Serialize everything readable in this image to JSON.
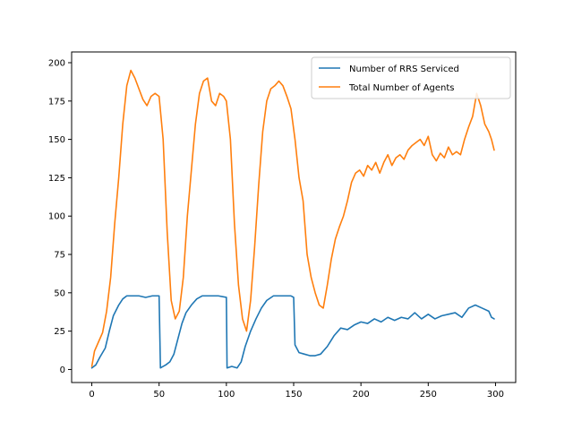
{
  "chart_data": {
    "type": "line",
    "title": "",
    "xlabel": "",
    "ylabel": "",
    "xlim": [
      -15,
      315
    ],
    "ylim": [
      -8.5,
      207
    ],
    "xticks": [
      0,
      50,
      100,
      150,
      200,
      250,
      300
    ],
    "yticks": [
      0,
      25,
      50,
      75,
      100,
      125,
      150,
      175,
      200
    ],
    "grid": false,
    "legend_position": "top-right",
    "series": [
      {
        "name": "Number of RRS Serviced",
        "color": "#1f77b4",
        "points": [
          [
            0,
            1
          ],
          [
            3,
            3
          ],
          [
            6,
            8
          ],
          [
            10,
            14
          ],
          [
            13,
            25
          ],
          [
            16,
            35
          ],
          [
            20,
            42
          ],
          [
            23,
            46
          ],
          [
            26,
            48
          ],
          [
            30,
            48
          ],
          [
            35,
            48
          ],
          [
            40,
            47
          ],
          [
            45,
            48
          ],
          [
            50,
            48
          ],
          [
            51,
            1
          ],
          [
            55,
            3
          ],
          [
            58,
            5
          ],
          [
            61,
            10
          ],
          [
            64,
            20
          ],
          [
            67,
            30
          ],
          [
            70,
            37
          ],
          [
            74,
            42
          ],
          [
            78,
            46
          ],
          [
            82,
            48
          ],
          [
            88,
            48
          ],
          [
            94,
            48
          ],
          [
            100,
            47
          ],
          [
            100.5,
            1
          ],
          [
            104,
            2
          ],
          [
            108,
            1
          ],
          [
            111,
            5
          ],
          [
            114,
            15
          ],
          [
            118,
            25
          ],
          [
            122,
            33
          ],
          [
            126,
            40
          ],
          [
            130,
            45
          ],
          [
            135,
            48
          ],
          [
            142,
            48
          ],
          [
            148,
            48
          ],
          [
            150,
            47
          ],
          [
            151,
            16
          ],
          [
            154,
            11
          ],
          [
            158,
            10
          ],
          [
            162,
            9
          ],
          [
            166,
            9
          ],
          [
            170,
            10
          ],
          [
            175,
            15
          ],
          [
            180,
            22
          ],
          [
            185,
            27
          ],
          [
            190,
            26
          ],
          [
            195,
            29
          ],
          [
            200,
            31
          ],
          [
            205,
            30
          ],
          [
            210,
            33
          ],
          [
            215,
            31
          ],
          [
            220,
            34
          ],
          [
            225,
            32
          ],
          [
            230,
            34
          ],
          [
            235,
            33
          ],
          [
            240,
            37
          ],
          [
            245,
            33
          ],
          [
            250,
            36
          ],
          [
            255,
            33
          ],
          [
            260,
            35
          ],
          [
            265,
            36
          ],
          [
            270,
            37
          ],
          [
            275,
            34
          ],
          [
            280,
            40
          ],
          [
            285,
            42
          ],
          [
            290,
            40
          ],
          [
            295,
            38
          ],
          [
            297,
            34
          ],
          [
            299,
            33
          ]
        ]
      },
      {
        "name": "Total Number of Agents",
        "color": "#ff7f0e",
        "points": [
          [
            0,
            2
          ],
          [
            2,
            12
          ],
          [
            5,
            18
          ],
          [
            8,
            24
          ],
          [
            11,
            38
          ],
          [
            14,
            60
          ],
          [
            17,
            95
          ],
          [
            20,
            125
          ],
          [
            23,
            160
          ],
          [
            26,
            185
          ],
          [
            29,
            195
          ],
          [
            32,
            190
          ],
          [
            35,
            183
          ],
          [
            38,
            176
          ],
          [
            41,
            172
          ],
          [
            44,
            178
          ],
          [
            47,
            180
          ],
          [
            50,
            178
          ],
          [
            53,
            150
          ],
          [
            56,
            90
          ],
          [
            59,
            45
          ],
          [
            62,
            33
          ],
          [
            65,
            38
          ],
          [
            68,
            60
          ],
          [
            71,
            100
          ],
          [
            74,
            130
          ],
          [
            77,
            160
          ],
          [
            80,
            180
          ],
          [
            83,
            188
          ],
          [
            86,
            190
          ],
          [
            89,
            175
          ],
          [
            92,
            172
          ],
          [
            95,
            180
          ],
          [
            98,
            178
          ],
          [
            100,
            175
          ],
          [
            103,
            150
          ],
          [
            106,
            95
          ],
          [
            109,
            55
          ],
          [
            112,
            33
          ],
          [
            115,
            25
          ],
          [
            118,
            45
          ],
          [
            121,
            80
          ],
          [
            124,
            120
          ],
          [
            127,
            155
          ],
          [
            130,
            175
          ],
          [
            133,
            183
          ],
          [
            136,
            185
          ],
          [
            139,
            188
          ],
          [
            142,
            185
          ],
          [
            145,
            178
          ],
          [
            148,
            170
          ],
          [
            151,
            150
          ],
          [
            154,
            125
          ],
          [
            157,
            110
          ],
          [
            160,
            75
          ],
          [
            163,
            60
          ],
          [
            166,
            50
          ],
          [
            169,
            42
          ],
          [
            172,
            40
          ],
          [
            175,
            55
          ],
          [
            178,
            72
          ],
          [
            181,
            85
          ],
          [
            184,
            93
          ],
          [
            187,
            100
          ],
          [
            190,
            110
          ],
          [
            193,
            122
          ],
          [
            196,
            128
          ],
          [
            199,
            130
          ],
          [
            202,
            126
          ],
          [
            205,
            133
          ],
          [
            208,
            130
          ],
          [
            211,
            135
          ],
          [
            214,
            128
          ],
          [
            217,
            135
          ],
          [
            220,
            140
          ],
          [
            223,
            133
          ],
          [
            226,
            138
          ],
          [
            229,
            140
          ],
          [
            232,
            137
          ],
          [
            235,
            143
          ],
          [
            238,
            146
          ],
          [
            241,
            148
          ],
          [
            244,
            150
          ],
          [
            247,
            146
          ],
          [
            250,
            152
          ],
          [
            253,
            140
          ],
          [
            256,
            136
          ],
          [
            259,
            141
          ],
          [
            262,
            138
          ],
          [
            265,
            145
          ],
          [
            268,
            140
          ],
          [
            271,
            142
          ],
          [
            274,
            140
          ],
          [
            277,
            150
          ],
          [
            280,
            158
          ],
          [
            283,
            165
          ],
          [
            286,
            180
          ],
          [
            289,
            172
          ],
          [
            292,
            160
          ],
          [
            295,
            155
          ],
          [
            297,
            150
          ],
          [
            299,
            143
          ]
        ]
      }
    ]
  }
}
